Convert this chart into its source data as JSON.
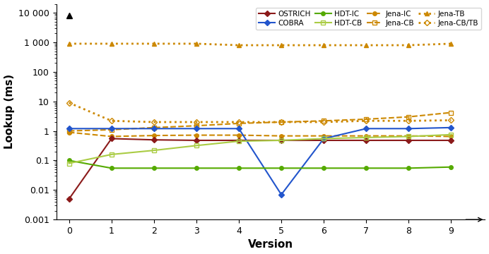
{
  "versions": [
    0,
    1,
    2,
    3,
    4,
    5,
    6,
    7,
    8,
    9
  ],
  "series": {
    "OSTRICH": {
      "values": [
        0.005,
        0.55,
        0.5,
        0.48,
        0.48,
        0.48,
        0.48,
        0.48,
        0.48,
        0.48
      ],
      "color": "#8B1A1A",
      "linestyle": "solid",
      "marker": "D",
      "markersize": 4,
      "linewidth": 1.5,
      "zorder": 3,
      "markerfacecolor_self": true
    },
    "COBRA": {
      "values": [
        1.2,
        1.2,
        1.2,
        1.2,
        1.2,
        0.007,
        0.55,
        1.2,
        1.2,
        1.3
      ],
      "color": "#2255cc",
      "linestyle": "solid",
      "marker": "D",
      "markersize": 4,
      "linewidth": 1.5,
      "zorder": 3,
      "markerfacecolor_self": true
    },
    "HDT-IC": {
      "values": [
        0.1,
        0.055,
        0.055,
        0.055,
        0.055,
        0.055,
        0.055,
        0.055,
        0.055,
        0.06
      ],
      "color": "#55aa00",
      "linestyle": "solid",
      "marker": "o",
      "markersize": 4,
      "linewidth": 1.5,
      "zorder": 3,
      "markerfacecolor_self": true
    },
    "HDT-CB": {
      "values": [
        0.08,
        0.16,
        0.22,
        0.32,
        0.45,
        0.48,
        0.55,
        0.6,
        0.65,
        0.75
      ],
      "color": "#aacc44",
      "linestyle": "solid",
      "marker": "s",
      "markersize": 5,
      "linewidth": 1.5,
      "zorder": 3,
      "markerfacecolor": "none"
    },
    "Jena-IC": {
      "values": [
        0.9,
        0.65,
        0.7,
        0.72,
        0.72,
        0.68,
        0.68,
        0.68,
        0.68,
        0.65
      ],
      "color": "#cc8800",
      "linestyle": "dashed",
      "marker": "o",
      "markersize": 4,
      "linewidth": 1.5,
      "zorder": 2,
      "markerfacecolor_self": true
    },
    "Jena-CB": {
      "values": [
        1.0,
        1.1,
        1.3,
        1.5,
        1.8,
        2.0,
        2.2,
        2.5,
        3.0,
        4.2
      ],
      "color": "#cc8800",
      "linestyle": "dashed",
      "marker": "s",
      "markersize": 5,
      "linewidth": 1.5,
      "zorder": 2,
      "markerfacecolor": "none"
    },
    "Jena-TB": {
      "values": [
        900,
        900,
        900,
        900,
        800,
        800,
        800,
        800,
        800,
        900
      ],
      "color": "#cc8800",
      "linestyle": "dotted",
      "marker": "^",
      "markersize": 5,
      "linewidth": 2.0,
      "zorder": 2,
      "markerfacecolor_self": true
    },
    "Jena-CB/TB": {
      "values": [
        9.0,
        2.2,
        2.0,
        2.0,
        2.0,
        2.0,
        2.0,
        2.2,
        2.2,
        2.3
      ],
      "color": "#cc8800",
      "linestyle": "dotted",
      "marker": "D",
      "markersize": 4,
      "linewidth": 2.0,
      "zorder": 2,
      "markerfacecolor": "none"
    }
  },
  "ylim": [
    0.001,
    20000
  ],
  "xlim": [
    -0.3,
    9.8
  ],
  "xlabel": "Version",
  "ylabel": "Lookup (ms)",
  "yticks": [
    0.001,
    0.01,
    0.1,
    1,
    10,
    100,
    1000,
    10000
  ],
  "ytick_labels": [
    "0.001",
    "0.01",
    "0.1",
    "1",
    "10",
    "100",
    "1 000",
    "10 000"
  ],
  "legend_row1": [
    "OSTRICH",
    "COBRA",
    "HDT-IC",
    "HDT-CB"
  ],
  "legend_row2": [
    "Jena-IC",
    "Jena-CB",
    "Jena-TB",
    "Jena-CB/TB"
  ],
  "top_marker_x": 0,
  "top_marker_y": 8000
}
